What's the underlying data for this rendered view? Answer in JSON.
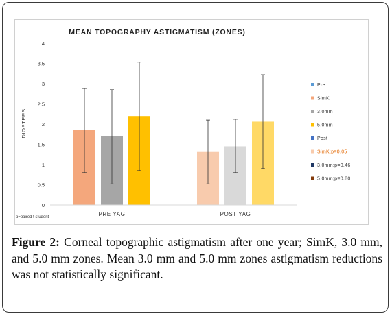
{
  "chart_data": {
    "type": "bar",
    "title": "MEAN TOPOGRAPHY ASTIGMATISM (ZONES)",
    "ylabel": "DIOPTERS",
    "xlabel": "",
    "ylim": [
      0,
      4
    ],
    "yticks": [
      "0",
      "0,5",
      "1",
      "1,5",
      "2",
      "2,5",
      "3",
      "3,5",
      "4"
    ],
    "grid": false,
    "legend_position": "right",
    "categories": [
      "PRE YAG",
      "POST YAG"
    ],
    "series": [
      {
        "name": "SimK",
        "legend": "SimK",
        "color": "#F4A77C",
        "values": [
          1.85,
          null
        ],
        "error_low": [
          0.8,
          null
        ],
        "error_high": [
          2.88,
          null
        ]
      },
      {
        "name": "3.0mm",
        "legend": "3.0mm",
        "color": "#A6A6A6",
        "values": [
          1.7,
          null
        ],
        "error_low": [
          0.52,
          null
        ],
        "error_high": [
          2.85,
          null
        ]
      },
      {
        "name": "5.0mm",
        "legend": "5.0mm",
        "color": "#FFC000",
        "values": [
          2.2,
          null
        ],
        "error_low": [
          0.85,
          null
        ],
        "error_high": [
          3.53,
          null
        ]
      },
      {
        "name": "SimK",
        "legend": "SimK;p=0.05",
        "color": "#F8CBAD",
        "values": [
          null,
          1.31
        ],
        "error_low": [
          null,
          0.52
        ],
        "error_high": [
          null,
          2.1
        ]
      },
      {
        "name": "3.0mm",
        "legend": "3.0mm;p=0.46",
        "color": "#D9D9D9",
        "values": [
          null,
          1.45
        ],
        "error_low": [
          null,
          0.8
        ],
        "error_high": [
          null,
          2.12
        ]
      },
      {
        "name": "5.0mm",
        "legend": "5.0mm;p=0.80",
        "color": "#FFD966",
        "values": [
          null,
          2.06
        ],
        "error_low": [
          null,
          0.9
        ],
        "error_high": [
          null,
          3.22
        ]
      }
    ],
    "legend": [
      {
        "label": "Pre",
        "color": "#5B9BD5"
      },
      {
        "label": "SimK",
        "color": "#F4A77C"
      },
      {
        "label": "3.0mm",
        "color": "#A6A6A6"
      },
      {
        "label": "5.0mm",
        "color": "#FFC000"
      },
      {
        "label": "Post",
        "color": "#4472C4"
      },
      {
        "label": "SimK;p=0.05",
        "color": "#F8CBAD",
        "text_color": "#E46C0A"
      },
      {
        "label": "3.0mm;p=0.46",
        "color": "#1F3864"
      },
      {
        "label": "5.0mm;p=0.80",
        "color": "#843C0C"
      }
    ],
    "footnote": "p=paired t student"
  },
  "caption": {
    "label": "Figure 2:",
    "text": " Corneal topographic astigmatism after one year; SimK, 3.0 mm, and 5.0 mm zones. Mean 3.0 mm and 5.0 mm zones astigmatism reductions was not statistically significant."
  }
}
